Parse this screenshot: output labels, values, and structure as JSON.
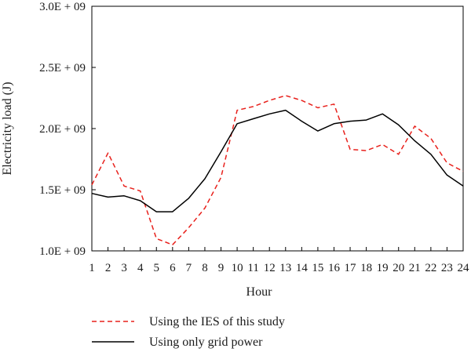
{
  "chart_data": {
    "type": "line",
    "title": "",
    "xlabel": "Hour",
    "ylabel": "Electricity load (J)",
    "x": [
      1,
      2,
      3,
      4,
      5,
      6,
      7,
      8,
      9,
      10,
      11,
      12,
      13,
      14,
      15,
      16,
      17,
      18,
      19,
      20,
      21,
      22,
      23,
      24
    ],
    "xlim": [
      1,
      24
    ],
    "ylim": [
      1000000000,
      3000000000
    ],
    "yticks": [
      1000000000,
      1500000000,
      2000000000,
      2500000000,
      3000000000
    ],
    "ytick_labels": [
      "1.0E + 09",
      "1.5E + 09",
      "2.0E + 09",
      "2.5E + 09",
      "3.0E + 09"
    ],
    "xtick_labels": [
      "1",
      "2",
      "3",
      "4",
      "5",
      "6",
      "7",
      "8",
      "9",
      "10",
      "11",
      "12",
      "13",
      "14",
      "15",
      "16",
      "17",
      "18",
      "19",
      "20",
      "21",
      "22",
      "23",
      "24"
    ],
    "grid": false,
    "legend_position": "bottom",
    "series": [
      {
        "name": "Using the IES of this study",
        "color": "#e8211c",
        "style": "dashed",
        "values": [
          1540000000,
          1800000000,
          1530000000,
          1490000000,
          1100000000,
          1050000000,
          1190000000,
          1350000000,
          1600000000,
          2150000000,
          2180000000,
          2230000000,
          2270000000,
          2230000000,
          2170000000,
          2200000000,
          1830000000,
          1820000000,
          1870000000,
          1790000000,
          2020000000,
          1920000000,
          1720000000,
          1650000000
        ]
      },
      {
        "name": "Using only grid power",
        "color": "#000000",
        "style": "solid",
        "values": [
          1470000000,
          1440000000,
          1450000000,
          1410000000,
          1320000000,
          1320000000,
          1430000000,
          1590000000,
          1810000000,
          2040000000,
          2080000000,
          2120000000,
          2150000000,
          2060000000,
          1980000000,
          2040000000,
          2060000000,
          2070000000,
          2120000000,
          2030000000,
          1900000000,
          1790000000,
          1620000000,
          1530000000
        ]
      }
    ]
  }
}
